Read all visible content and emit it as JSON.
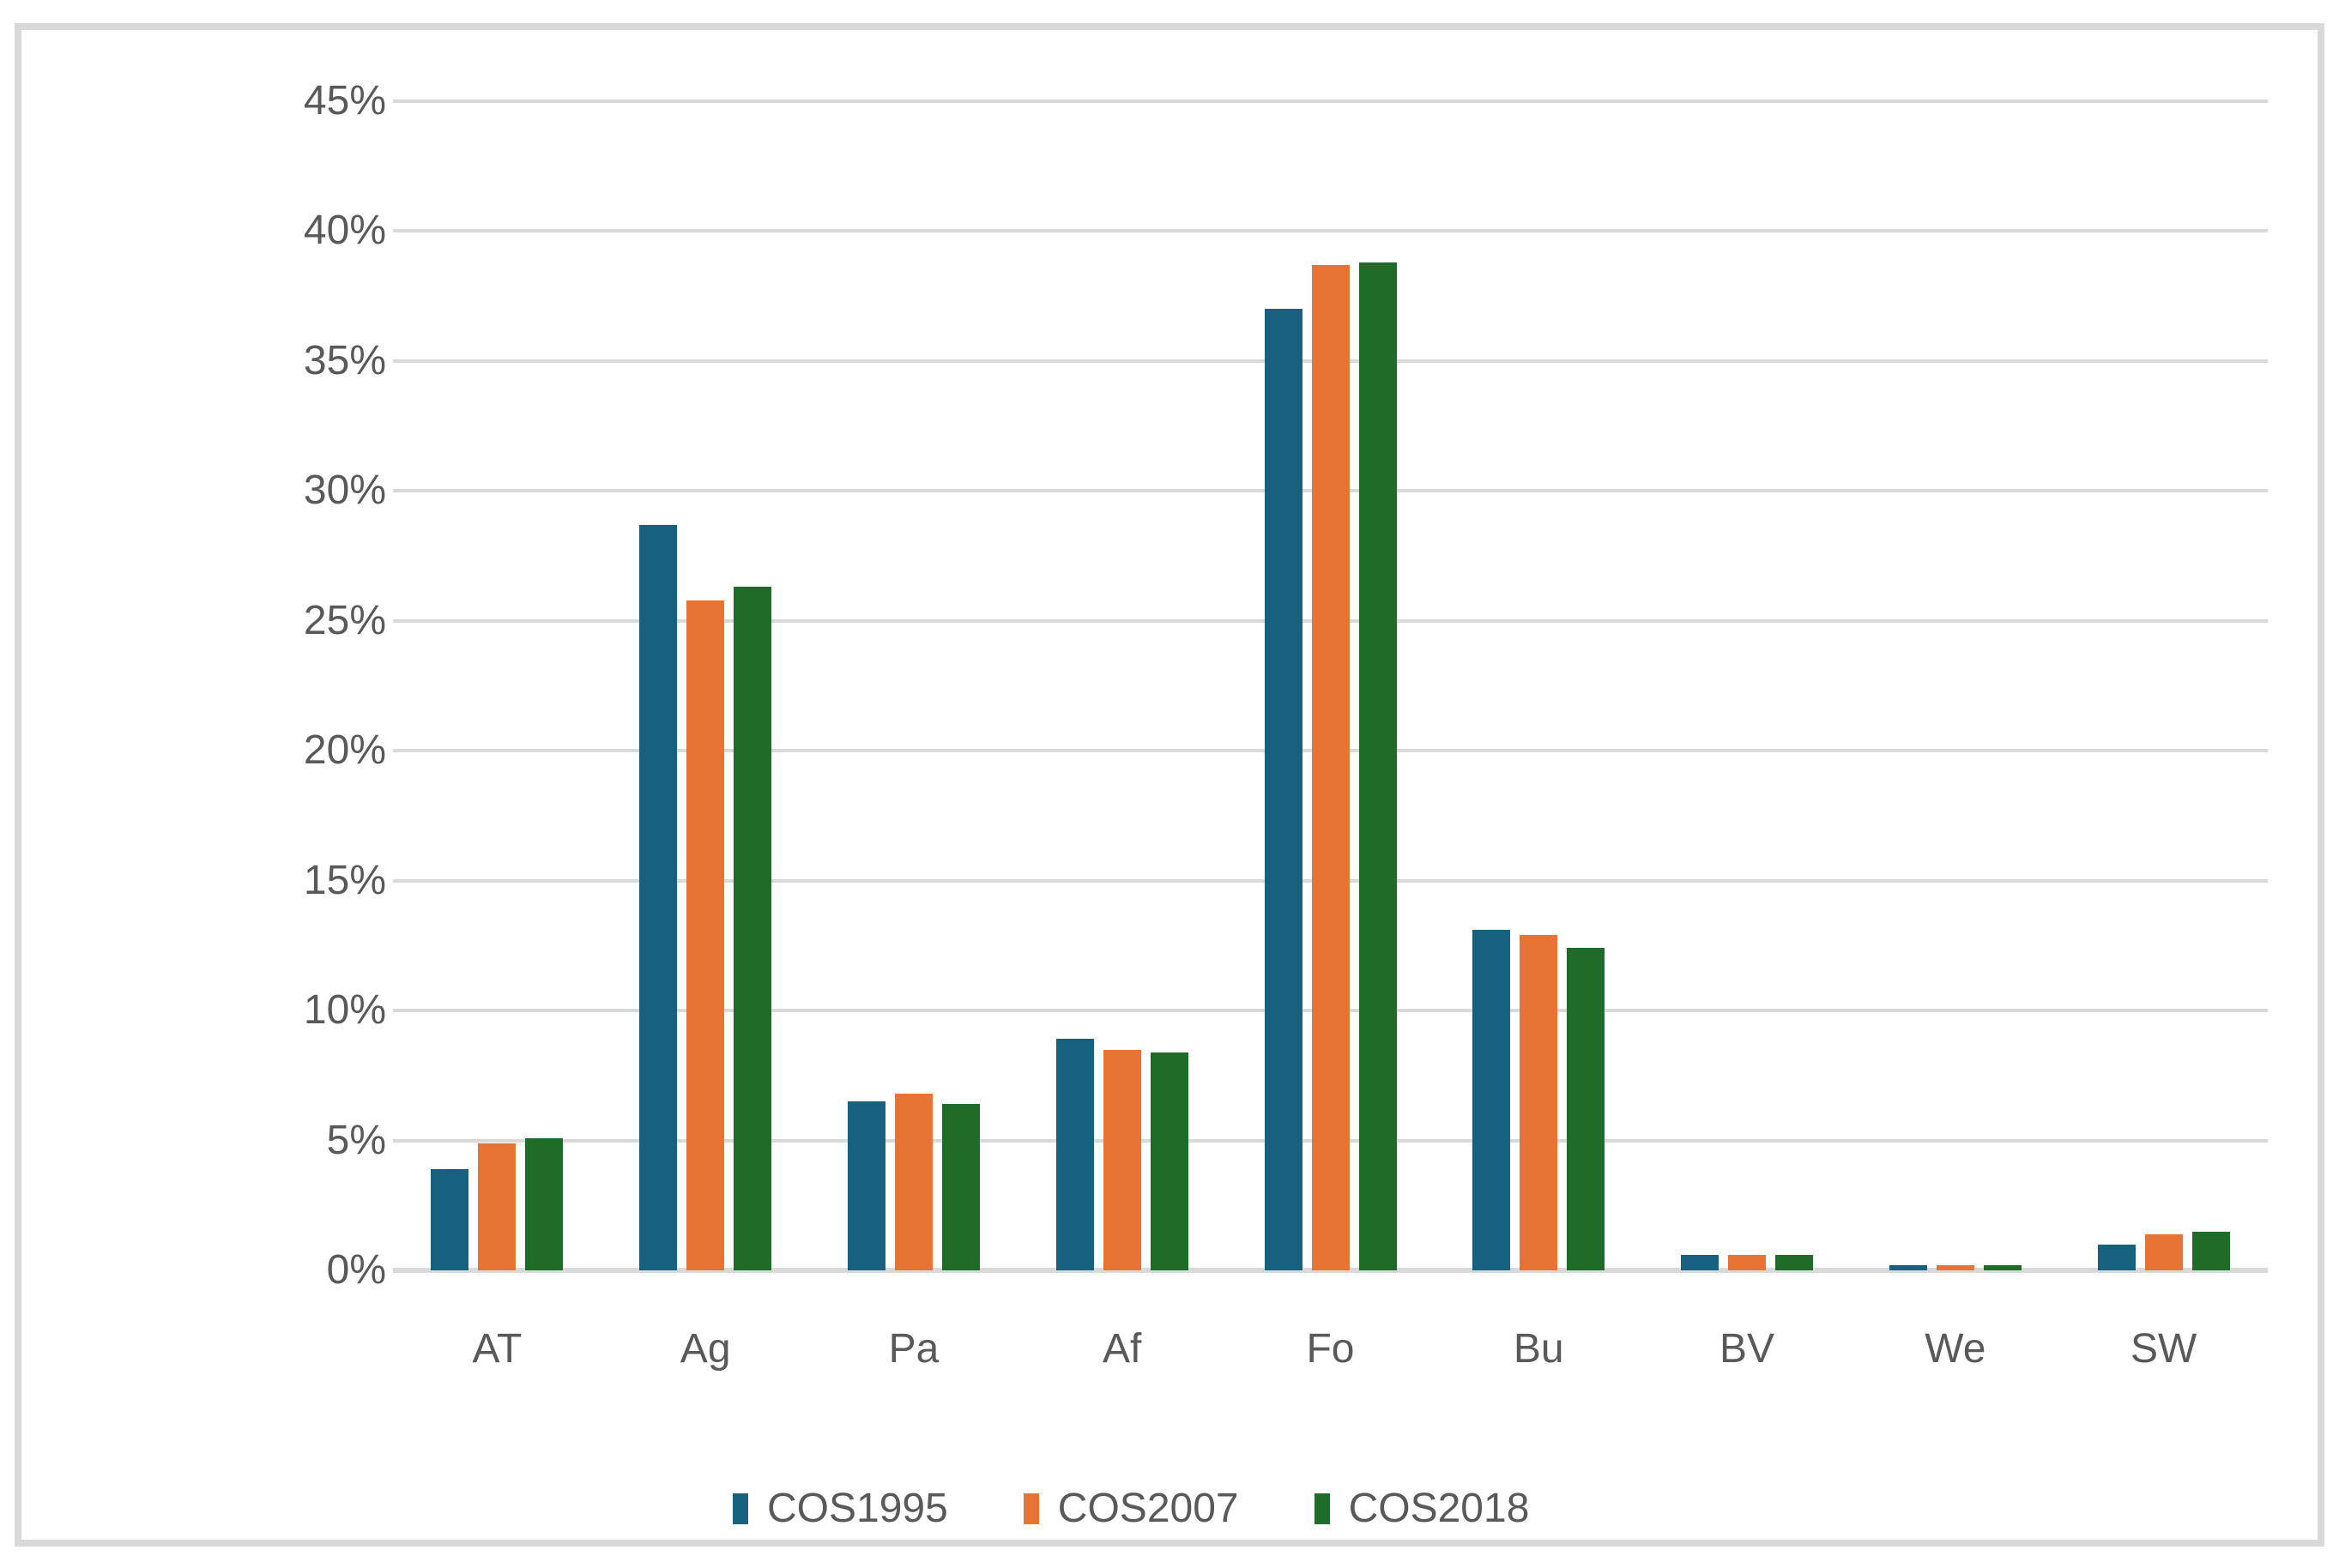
{
  "chart_data": {
    "type": "bar",
    "title": "",
    "xlabel": "",
    "ylabel": "",
    "categories": [
      "AT",
      "Ag",
      "Pa",
      "Af",
      "Fo",
      "Bu",
      "BV",
      "We",
      "SW"
    ],
    "series": [
      {
        "name": "COS1995",
        "color": "#17617F",
        "values": [
          3.9,
          28.7,
          6.5,
          8.9,
          37.0,
          13.1,
          0.6,
          0.2,
          1.0
        ]
      },
      {
        "name": "COS2007",
        "color": "#E77435",
        "values": [
          4.9,
          25.8,
          6.8,
          8.5,
          38.7,
          12.9,
          0.6,
          0.2,
          1.4
        ]
      },
      {
        "name": "COS2018",
        "color": "#1E6C27",
        "values": [
          5.1,
          26.3,
          6.4,
          8.4,
          38.8,
          12.4,
          0.6,
          0.2,
          1.5
        ]
      }
    ],
    "ylim": [
      0,
      45
    ],
    "ytick_step": 5,
    "ytick_labels": [
      "0%",
      "5%",
      "10%",
      "15%",
      "20%",
      "25%",
      "30%",
      "35%",
      "40%",
      "45%"
    ],
    "grid": true,
    "gridline_color": "#d9d9d9",
    "axis_text_color": "#595959",
    "legend_position": "bottom"
  }
}
